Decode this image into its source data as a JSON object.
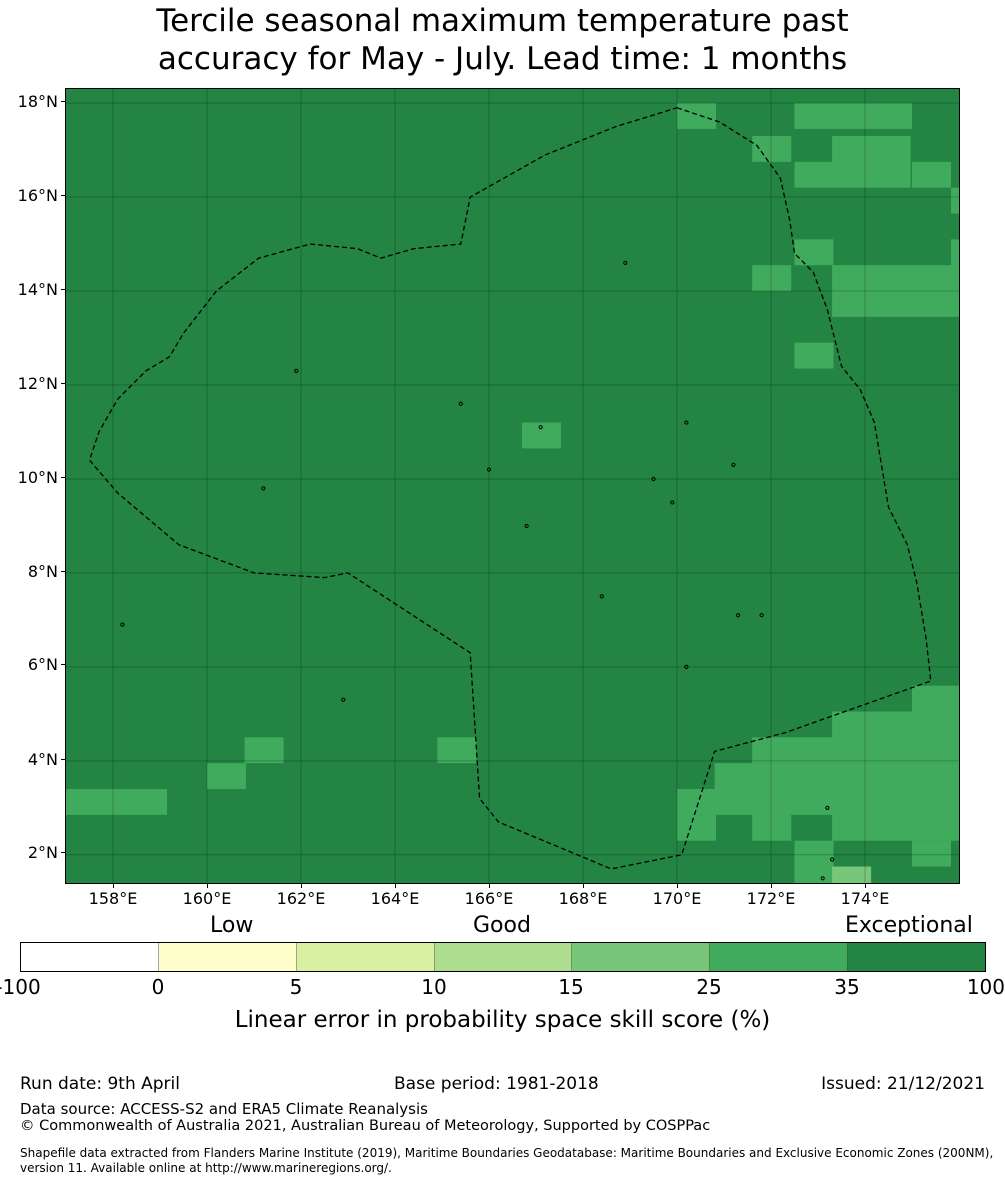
{
  "title": {
    "line1": "Tercile seasonal maximum temperature past",
    "line2": "accuracy for May - July. Lead time: 1 months"
  },
  "map": {
    "lon_range": [
      157.0,
      176.0
    ],
    "lat_range": [
      1.4,
      18.3
    ],
    "base_value_pct": 40,
    "lat_ticks": [
      "18°N",
      "16°N",
      "14°N",
      "12°N",
      "10°N",
      "8°N",
      "6°N",
      "4°N",
      "2°N"
    ],
    "lon_ticks": [
      "158°E",
      "160°E",
      "162°E",
      "164°E",
      "166°E",
      "168°E",
      "170°E",
      "172°E",
      "174°E"
    ],
    "cells": [
      {
        "lon": 170.0,
        "lat": 18.0,
        "width": 0.83,
        "height": 0.55,
        "score": 30
      },
      {
        "lon": 172.5,
        "lat": 18.0,
        "width": 2.5,
        "height": 0.55,
        "score": 30
      },
      {
        "lon": 171.6,
        "lat": 17.3,
        "width": 0.83,
        "height": 0.55,
        "score": 30
      },
      {
        "lon": 173.3,
        "lat": 17.3,
        "width": 1.67,
        "height": 1.1,
        "score": 30
      },
      {
        "lon": 172.5,
        "lat": 16.75,
        "width": 0.83,
        "height": 0.55,
        "score": 30
      },
      {
        "lon": 175.0,
        "lat": 16.75,
        "width": 0.83,
        "height": 0.55,
        "score": 30
      },
      {
        "lon": 175.83,
        "lat": 16.2,
        "width": 0.17,
        "height": 0.55,
        "score": 30
      },
      {
        "lon": 172.5,
        "lat": 15.1,
        "width": 0.83,
        "height": 0.55,
        "score": 30
      },
      {
        "lon": 175.83,
        "lat": 15.1,
        "width": 0.17,
        "height": 0.55,
        "score": 30
      },
      {
        "lon": 171.6,
        "lat": 14.55,
        "width": 0.83,
        "height": 0.55,
        "score": 30
      },
      {
        "lon": 173.3,
        "lat": 14.55,
        "width": 2.7,
        "height": 0.55,
        "score": 30
      },
      {
        "lon": 173.3,
        "lat": 14.0,
        "width": 2.7,
        "height": 0.55,
        "score": 30
      },
      {
        "lon": 172.5,
        "lat": 12.9,
        "width": 0.83,
        "height": 0.55,
        "score": 30
      },
      {
        "lon": 166.7,
        "lat": 11.2,
        "width": 0.83,
        "height": 0.55,
        "score": 30
      },
      {
        "lon": 175.0,
        "lat": 5.6,
        "width": 1.0,
        "height": 0.55,
        "score": 30
      },
      {
        "lon": 173.3,
        "lat": 5.05,
        "width": 2.7,
        "height": 0.55,
        "score": 30
      },
      {
        "lon": 160.8,
        "lat": 4.5,
        "width": 0.83,
        "height": 0.55,
        "score": 30
      },
      {
        "lon": 164.9,
        "lat": 4.5,
        "width": 0.83,
        "height": 0.55,
        "score": 30
      },
      {
        "lon": 171.6,
        "lat": 4.5,
        "width": 4.4,
        "height": 0.55,
        "score": 30
      },
      {
        "lon": 160.0,
        "lat": 3.95,
        "width": 0.83,
        "height": 0.55,
        "score": 30
      },
      {
        "lon": 170.8,
        "lat": 3.95,
        "width": 5.2,
        "height": 0.55,
        "score": 30
      },
      {
        "lon": 157.0,
        "lat": 3.4,
        "width": 2.15,
        "height": 0.55,
        "score": 30
      },
      {
        "lon": 170.0,
        "lat": 3.4,
        "width": 6.0,
        "height": 0.55,
        "score": 30
      },
      {
        "lon": 170.0,
        "lat": 2.85,
        "width": 0.83,
        "height": 0.55,
        "score": 30
      },
      {
        "lon": 171.6,
        "lat": 2.85,
        "width": 0.83,
        "height": 0.55,
        "score": 30
      },
      {
        "lon": 173.3,
        "lat": 2.85,
        "width": 2.7,
        "height": 0.55,
        "score": 30
      },
      {
        "lon": 172.5,
        "lat": 2.3,
        "width": 0.83,
        "height": 0.55,
        "score": 30
      },
      {
        "lon": 175.0,
        "lat": 2.3,
        "width": 0.83,
        "height": 0.55,
        "score": 30
      },
      {
        "lon": 172.5,
        "lat": 1.75,
        "width": 0.83,
        "height": 0.55,
        "score": 30
      },
      {
        "lon": 173.3,
        "lat": 1.75,
        "width": 0.83,
        "height": 0.35,
        "score": 20
      },
      {
        "lon": 173.3,
        "lat": 1.4,
        "width": 0.83,
        "height": 0.25,
        "score": 12
      }
    ],
    "eez_boundary": [
      [
        170.0,
        17.9
      ],
      [
        170.9,
        17.6
      ],
      [
        171.7,
        17.1
      ],
      [
        172.2,
        16.4
      ],
      [
        172.4,
        15.5
      ],
      [
        172.5,
        14.8
      ],
      [
        172.9,
        14.4
      ],
      [
        173.2,
        13.6
      ],
      [
        173.5,
        12.4
      ],
      [
        173.9,
        11.9
      ],
      [
        174.2,
        11.2
      ],
      [
        174.5,
        9.4
      ],
      [
        174.9,
        8.6
      ],
      [
        175.1,
        7.8
      ],
      [
        175.3,
        6.6
      ],
      [
        175.4,
        5.7
      ],
      [
        172.3,
        4.6
      ],
      [
        170.8,
        4.2
      ],
      [
        170.1,
        2.0
      ],
      [
        168.6,
        1.7
      ],
      [
        166.2,
        2.7
      ],
      [
        165.8,
        3.2
      ],
      [
        165.6,
        6.3
      ],
      [
        163.0,
        8.0
      ],
      [
        162.5,
        7.9
      ],
      [
        161.0,
        8.0
      ],
      [
        159.4,
        8.6
      ],
      [
        158.1,
        9.7
      ],
      [
        157.5,
        10.4
      ],
      [
        157.7,
        11.0
      ],
      [
        158.1,
        11.7
      ],
      [
        158.7,
        12.3
      ],
      [
        159.2,
        12.6
      ],
      [
        159.5,
        13.1
      ],
      [
        160.2,
        14.0
      ],
      [
        161.1,
        14.7
      ],
      [
        162.2,
        15.0
      ],
      [
        163.2,
        14.9
      ],
      [
        163.7,
        14.7
      ],
      [
        164.4,
        14.9
      ],
      [
        165.4,
        15.0
      ],
      [
        165.6,
        16.0
      ],
      [
        167.2,
        16.9
      ],
      [
        168.7,
        17.5
      ],
      [
        170.0,
        17.9
      ]
    ],
    "islands": [
      [
        158.2,
        6.9
      ],
      [
        162.9,
        5.3
      ],
      [
        167.1,
        11.1
      ],
      [
        170.2,
        11.2
      ],
      [
        166.0,
        10.2
      ],
      [
        168.9,
        14.6
      ],
      [
        171.3,
        7.1
      ],
      [
        171.8,
        7.1
      ],
      [
        170.2,
        6.0
      ],
      [
        173.2,
        3.0
      ],
      [
        173.3,
        1.9
      ],
      [
        173.1,
        1.5
      ],
      [
        161.2,
        9.8
      ],
      [
        161.9,
        12.3
      ],
      [
        165.4,
        11.6
      ],
      [
        168.4,
        7.5
      ],
      [
        169.5,
        10.0
      ],
      [
        166.8,
        9.0
      ],
      [
        171.2,
        10.3
      ],
      [
        169.9,
        9.5
      ]
    ]
  },
  "colorbar": {
    "categories": [
      "Low",
      "Good",
      "Exceptional"
    ],
    "ticks": [
      "-100",
      "0",
      "5",
      "10",
      "15",
      "25",
      "35",
      "100"
    ],
    "colors": [
      "#ffffff",
      "#ffffcc",
      "#d9f0a3",
      "#addd8e",
      "#78c679",
      "#41ab5d",
      "#238443"
    ],
    "label": "Linear error in probability space skill score (%)"
  },
  "footer": {
    "run_date": "Run date: 9th April",
    "base_period": "Base period: 1981-2018",
    "issued": "Issued: 21/12/2021",
    "data_source": "Data source: ACCESS-S2 and ERA5 Climate Reanalysis",
    "copyright": "© Commonwealth of Australia 2021, Australian Bureau of Meteorology, Supported by COSPPac",
    "shapefile_line1": "Shapefile data extracted from Flanders Marine Institute (2019), Maritime Boundaries Geodatabase: Maritime Boundaries and Exclusive Economic Zones (200NM),",
    "shapefile_line2": "version 11. Available online at http://www.marineregions.org/."
  }
}
